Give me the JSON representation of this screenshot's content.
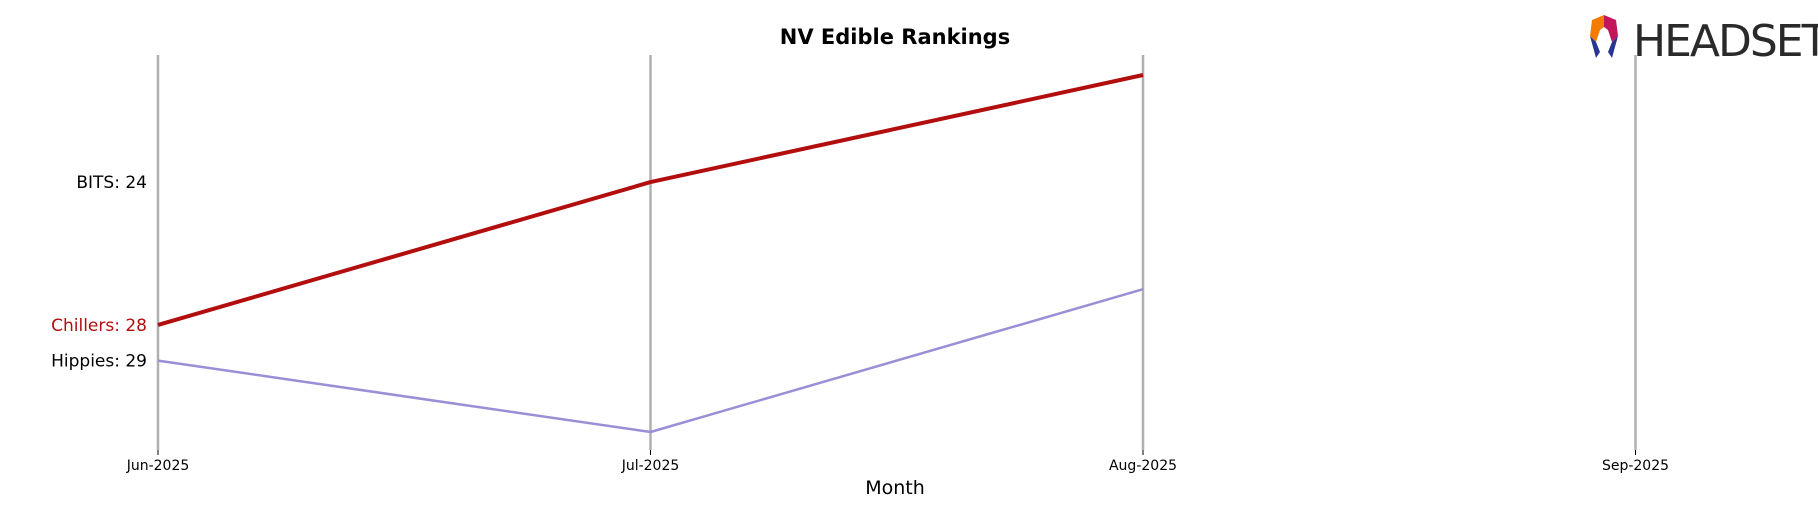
{
  "chart_data": {
    "type": "line",
    "title": "NV Edible Rankings",
    "xlabel": "Month",
    "ylabel": "",
    "categories": [
      "Jun-2025",
      "Jul-2025",
      "Aug-2025",
      "Sep-2025"
    ],
    "y_inverted": true,
    "ylim": [
      32,
      21
    ],
    "grid": "vertical lines at each month",
    "series": [
      {
        "name": "Chillers",
        "values": [
          28,
          24,
          21,
          null
        ],
        "color": "#b20e0e",
        "highlight": true
      },
      {
        "name": "Hippies",
        "values": [
          29,
          31,
          27,
          null
        ],
        "color": "#9a8fd6",
        "highlight": false
      }
    ],
    "rank_labels": [
      {
        "text": "BITS: 24",
        "rank": 24,
        "color": "#000000"
      },
      {
        "text": "Chillers: 28",
        "rank": 28,
        "color": "#b20e0e"
      },
      {
        "text": "Hippies: 29",
        "rank": 29,
        "color": "#000000"
      }
    ]
  },
  "logo": {
    "text": "HEADSET",
    "icon": "headset-logo-icon"
  }
}
